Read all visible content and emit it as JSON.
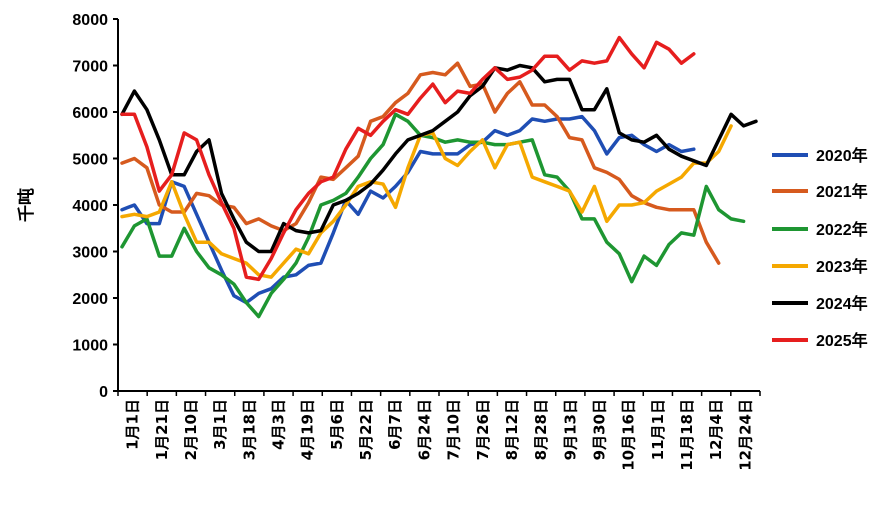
{
  "chart_data": {
    "type": "line",
    "title": "",
    "xlabel": "",
    "ylabel": "千吨",
    "ylim": [
      0,
      8000
    ],
    "yticks": [
      0,
      1000,
      2000,
      3000,
      4000,
      5000,
      6000,
      7000,
      8000
    ],
    "grid": false,
    "legend_position": "right",
    "x_tick_labels": [
      "1月1日",
      "1月21日",
      "2月10日",
      "3月1日",
      "3月18日",
      "4月3日",
      "4月19日",
      "5月6日",
      "5月22日",
      "6月7日",
      "6月24日",
      "7月10日",
      "7月26日",
      "8月12日",
      "8月28日",
      "9月13日",
      "9月30日",
      "10月16日",
      "11月1日",
      "11月18日",
      "12月4日",
      "12月24日"
    ],
    "series": [
      {
        "name": "2020年",
        "color": "#1f4eb4",
        "values": [
          3900,
          4000,
          3600,
          3600,
          4500,
          4400,
          3800,
          3200,
          2600,
          2050,
          1900,
          2100,
          2200,
          2450,
          2500,
          2700,
          2750,
          3400,
          4100,
          3800,
          4300,
          4150,
          4400,
          4700,
          5150,
          5100,
          5100,
          5100,
          5300,
          5350,
          5600,
          5500,
          5600,
          5850,
          5800,
          5850,
          5850,
          5900,
          5600,
          5100,
          5450,
          5500,
          5300,
          5150,
          5300,
          5150,
          5200
        ]
      },
      {
        "name": "2021年",
        "color": "#d65a1e",
        "values": [
          4900,
          5000,
          4800,
          4000,
          3850,
          3850,
          4250,
          4200,
          4000,
          3950,
          3600,
          3700,
          3550,
          3450,
          3600,
          4050,
          4600,
          4550,
          4800,
          5050,
          5800,
          5900,
          6200,
          6400,
          6800,
          6850,
          6800,
          7050,
          6550,
          6600,
          6000,
          6400,
          6650,
          6150,
          6150,
          5900,
          5450,
          5400,
          4800,
          4700,
          4550,
          4200,
          4050,
          3950,
          3900,
          3900,
          3900,
          3200,
          2750
        ]
      },
      {
        "name": "2022年",
        "color": "#1e9632",
        "values": [
          3100,
          3550,
          3700,
          2900,
          2900,
          3500,
          3000,
          2650,
          2500,
          2300,
          1900,
          1600,
          2100,
          2400,
          2750,
          3300,
          4000,
          4100,
          4250,
          4600,
          5000,
          5300,
          5950,
          5800,
          5500,
          5450,
          5350,
          5400,
          5350,
          5350,
          5300,
          5300,
          5350,
          5400,
          4650,
          4600,
          4300,
          3700,
          3700,
          3200,
          2950,
          2350,
          2900,
          2700,
          3150,
          3400,
          3350,
          4400,
          3900,
          3700,
          3650
        ]
      },
      {
        "name": "2023年",
        "color": "#f5a800",
        "values": [
          3750,
          3800,
          3750,
          3850,
          4500,
          3800,
          3200,
          3200,
          2950,
          2850,
          2750,
          2500,
          2450,
          2750,
          3050,
          2950,
          3400,
          3650,
          4000,
          4400,
          4500,
          4450,
          3950,
          4800,
          5500,
          5550,
          5000,
          4850,
          5150,
          5400,
          4800,
          5300,
          5350,
          4600,
          4500,
          4400,
          4300,
          3850,
          4400,
          3650,
          4000,
          4000,
          4050,
          4300,
          4450,
          4600,
          4900,
          4900,
          5150,
          5700
        ]
      },
      {
        "name": "2024年",
        "color": "#000000",
        "values": [
          5950,
          6450,
          6050,
          5400,
          4650,
          4650,
          5150,
          5400,
          4250,
          3700,
          3200,
          3000,
          3000,
          3600,
          3450,
          3400,
          3450,
          4000,
          4100,
          4250,
          4450,
          4750,
          5100,
          5400,
          5500,
          5600,
          5800,
          6000,
          6350,
          6550,
          6950,
          6900,
          7000,
          6950,
          6650,
          6700,
          6700,
          6050,
          6050,
          6500,
          5550,
          5400,
          5350,
          5500,
          5200,
          5050,
          4950,
          4850,
          5400,
          5950,
          5700,
          5800
        ]
      },
      {
        "name": "2025年",
        "color": "#e61e1e",
        "values": [
          5950,
          5950,
          5250,
          4300,
          4650,
          5550,
          5400,
          4650,
          4050,
          3500,
          2450,
          2400,
          2850,
          3400,
          3900,
          4250,
          4500,
          4600,
          5200,
          5650,
          5500,
          5800,
          6050,
          5950,
          6300,
          6600,
          6200,
          6450,
          6400,
          6700,
          6950,
          6700,
          6750,
          6900,
          7200,
          7200,
          6900,
          7100,
          7050,
          7100,
          7600,
          7250,
          6950,
          7500,
          7350,
          7050,
          7250
        ]
      }
    ]
  }
}
